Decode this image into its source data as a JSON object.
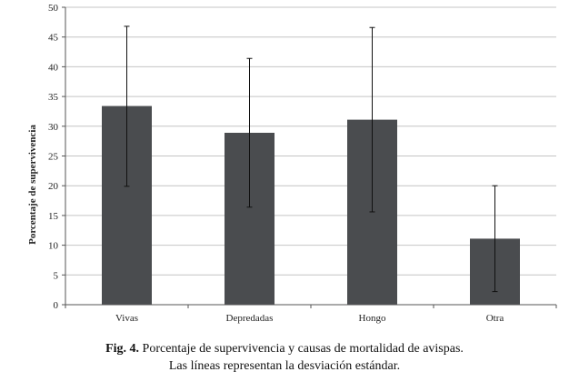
{
  "chart_data": {
    "type": "bar",
    "title": "",
    "xlabel": "",
    "ylabel": "Porcentaje de supervivencia",
    "categories": [
      "Vivas",
      "Depredadas",
      "Hongo",
      "Otra"
    ],
    "values": [
      33.4,
      28.9,
      31.1,
      11.1
    ],
    "error_low": [
      19.9,
      16.4,
      15.6,
      2.2
    ],
    "error_high": [
      46.8,
      41.4,
      46.6,
      20.0
    ],
    "ylim": [
      0,
      50
    ],
    "yticks": [
      0,
      5,
      10,
      15,
      20,
      25,
      30,
      35,
      40,
      45,
      50
    ],
    "grid": true,
    "bar_color": "#4a4c4f",
    "grid_color": "#c4c4c4"
  },
  "caption": {
    "fig_num": "Fig. 4.",
    "line1": "Porcentaje de supervivencia y causas de mortalidad de avispas.",
    "line2": "Las líneas representan la desviación estándar."
  }
}
